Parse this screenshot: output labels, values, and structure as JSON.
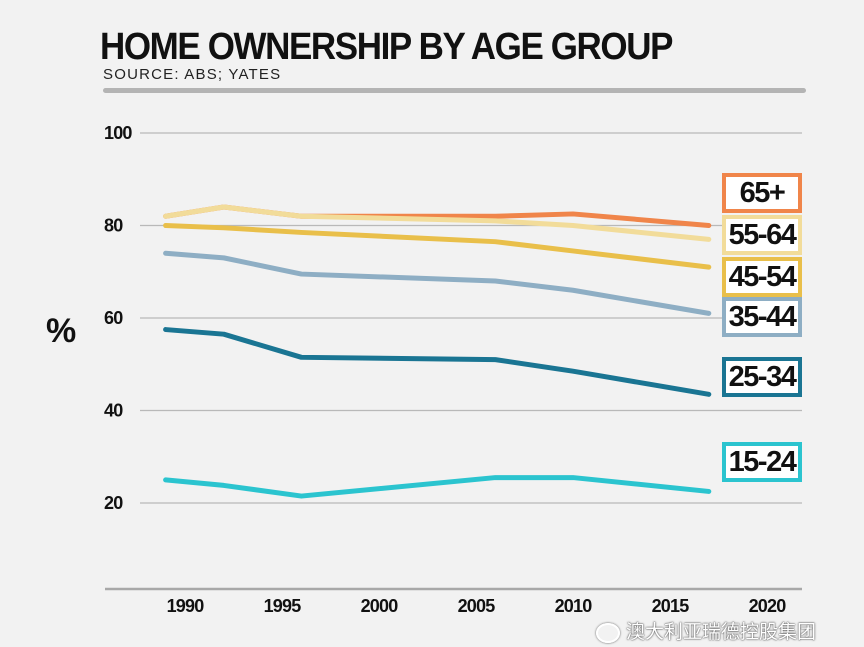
{
  "chart_data": {
    "type": "line",
    "title": "HOME OWNERSHIP BY AGE GROUP",
    "subtitle": "SOURCE: ABS; YATES",
    "ylabel": "%",
    "xlabel": "",
    "ylim": [
      0,
      100
    ],
    "xlim": [
      1985,
      2021
    ],
    "yticks": [
      "100",
      "80",
      "60",
      "40",
      "20"
    ],
    "xticks": [
      "1990",
      "1995",
      "2000",
      "2005",
      "2010",
      "2015",
      "2020"
    ],
    "grid": true,
    "legend": "right, labels at line ends",
    "x": [
      1989,
      1992,
      1996,
      2006,
      2010,
      2017
    ],
    "series": [
      {
        "name": "65+",
        "color": "#f0854a",
        "values": [
          82,
          84,
          82,
          82,
          82.5,
          80
        ]
      },
      {
        "name": "55-64",
        "color": "#f2dc9a",
        "values": [
          82,
          84,
          82,
          81,
          80,
          77
        ]
      },
      {
        "name": "45-54",
        "color": "#e9bf4a",
        "values": [
          80,
          79.5,
          78.5,
          76.5,
          74.5,
          71
        ]
      },
      {
        "name": "35-44",
        "color": "#8eaec4",
        "values": [
          74,
          73,
          69.5,
          68,
          66,
          61
        ]
      },
      {
        "name": "25-34",
        "color": "#1a7593",
        "values": [
          57.5,
          56.5,
          51.5,
          51,
          48.5,
          43.5
        ]
      },
      {
        "name": "15-24",
        "color": "#2bc4cf",
        "values": [
          25,
          23.8,
          21.5,
          25.5,
          25.5,
          22.5
        ]
      }
    ]
  },
  "watermark": "澳大利亚瑞德控股集团"
}
